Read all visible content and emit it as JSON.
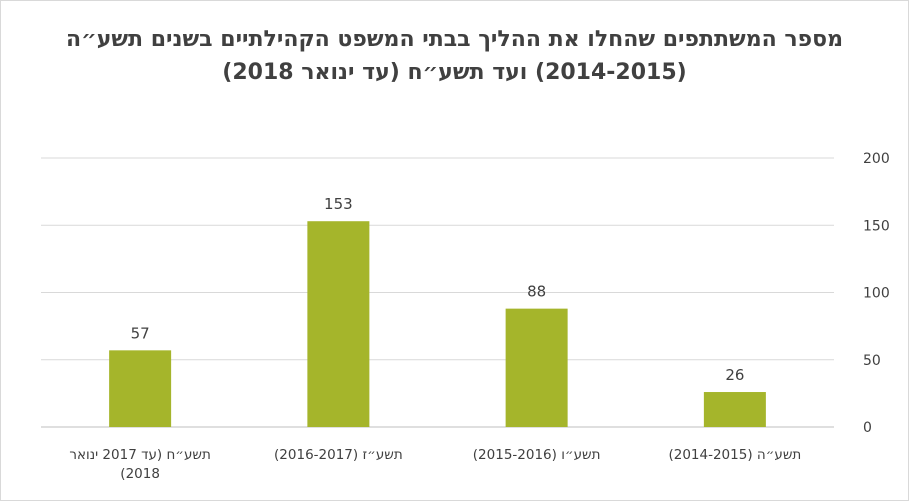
{
  "chart_data": {
    "type": "bar",
    "title": "מספר המשתתפים שהחלו את ההליך בבתי המשפט הקהילתיים בשנים תשע״ה (2014-2015) ועד תשע״ח (עד ינואר 2018)",
    "categories": [
      "תשע״ה (2014-2015)",
      "תשע״ו (2015-2016)",
      "תשע״ז (2016-2017)",
      "תשע״ח (עד 2017 ינואר 2018)"
    ],
    "category_lines": [
      [
        "תשע״ה (2014-2015)"
      ],
      [
        "תשע״ו (2015-2016)"
      ],
      [
        "תשע״ז (2016-2017)"
      ],
      [
        "תשע״ח (עד 2017 ינואר",
        "2018)"
      ]
    ],
    "values": [
      26,
      88,
      153,
      57
    ],
    "ylim": [
      0,
      200
    ],
    "yticks": [
      0,
      50,
      100,
      150,
      200
    ],
    "y_axis_side": "right",
    "category_order": "right-to-left",
    "bar_color": "#a5b52b",
    "grid": true,
    "legend": "none"
  }
}
